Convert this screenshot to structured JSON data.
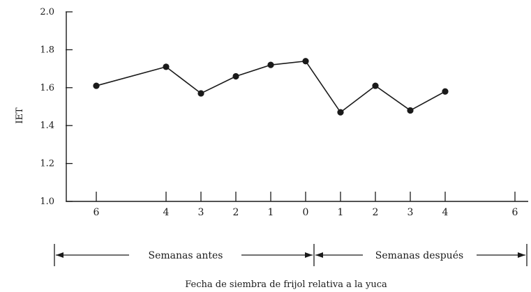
{
  "chart_data": {
    "type": "line",
    "ylabel": "IET",
    "xlabel": "Fecha de siembra de frijol relativa a la yuca",
    "ylim": [
      1.0,
      2.0
    ],
    "y_ticks": [
      "1.0",
      "1.2",
      "1.4",
      "1.6",
      "1.8",
      "2.0"
    ],
    "grid": false,
    "x": [
      -6,
      -4,
      -3,
      -2,
      -1,
      0,
      1,
      2,
      3,
      4
    ],
    "values": [
      1.61,
      1.71,
      1.57,
      1.66,
      1.72,
      1.74,
      1.47,
      1.61,
      1.48,
      1.58
    ],
    "x_tick_values": [
      -6,
      -4,
      -3,
      -2,
      -1,
      0,
      1,
      2,
      3,
      4,
      6
    ],
    "x_tick_labels": [
      "6",
      "4",
      "3",
      "2",
      "1",
      "0",
      "1",
      "2",
      "3",
      "4",
      "6"
    ],
    "spans": [
      {
        "label": "Semanas antes",
        "from": -6,
        "to": 0
      },
      {
        "label": "Semanas después",
        "from": 0,
        "to": 6
      }
    ]
  }
}
